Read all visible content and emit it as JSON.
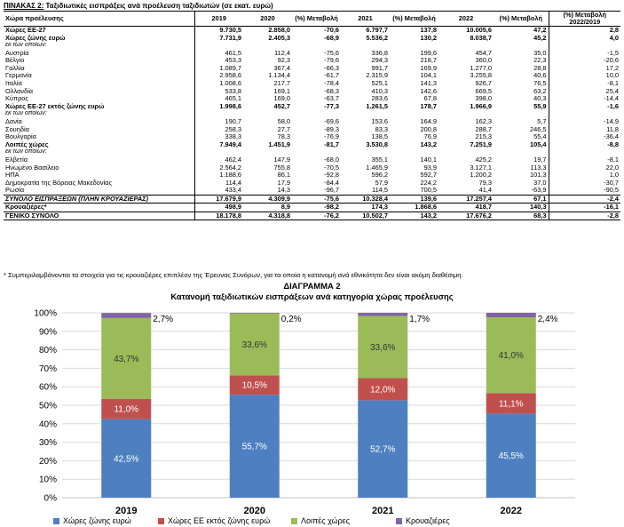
{
  "table": {
    "title_prefix": "ΠΙΝΑΚΑΣ 2:",
    "title_rest": "Ταξιδιωτικές εισπράξεις ανά προέλευση ταξιδιωτών (σε εκατ. ευρώ)",
    "headers": [
      "Χώρα προέλευσης",
      "2019",
      "2020",
      "(%) Μεταβολή",
      "2021",
      "(%) Μεταβολή",
      "2022",
      "(%) Μεταβολή",
      "(%) Μεταβολή 2022/2019"
    ],
    "rows": [
      {
        "label": "Χώρες ΕΕ-27",
        "cells": [
          "9.730,5",
          "2.858,0",
          "-70,6",
          "6.797,7",
          "137,8",
          "10.005,6",
          "47,2",
          "2,8"
        ],
        "style": "bold"
      },
      {
        "label": "Χώρες ζώνης ευρώ",
        "cells": [
          "7.731,9",
          "2.405,3",
          "-68,9",
          "5.536,2",
          "130,2",
          "8.038,7",
          "45,2",
          "4,0"
        ],
        "style": "bold"
      },
      {
        "label": "εκ των οποίων:",
        "cells": [
          "",
          "",
          "",
          "",
          "",
          "",
          "",
          ""
        ],
        "style": "sub"
      },
      {
        "label": "Αυστρία",
        "cells": [
          "461,5",
          "112,4",
          "-75,6",
          "336,8",
          "199,6",
          "454,7",
          "35,0",
          "-1,5"
        ],
        "style": ""
      },
      {
        "label": "Βέλγιο",
        "cells": [
          "453,3",
          "92,3",
          "-79,6",
          "294,3",
          "218,7",
          "360,0",
          "22,3",
          "-20,6"
        ],
        "style": ""
      },
      {
        "label": "Γαλλία",
        "cells": [
          "1.089,7",
          "367,4",
          "-66,3",
          "991,7",
          "169,9",
          "1.277,0",
          "28,8",
          "17,2"
        ],
        "style": ""
      },
      {
        "label": "Γερμανία",
        "cells": [
          "2.958,6",
          "1.134,4",
          "-61,7",
          "2.315,9",
          "104,1",
          "3.255,8",
          "40,6",
          "10,0"
        ],
        "style": ""
      },
      {
        "label": "Ιταλία",
        "cells": [
          "1.008,6",
          "217,7",
          "-78,4",
          "525,1",
          "141,3",
          "926,7",
          "76,5",
          "-8,1"
        ],
        "style": ""
      },
      {
        "label": "Ολλανδία",
        "cells": [
          "533,8",
          "169,1",
          "-68,3",
          "410,3",
          "142,6",
          "669,5",
          "63,2",
          "25,4"
        ],
        "style": ""
      },
      {
        "label": "Κύπρος",
        "cells": [
          "465,1",
          "169,0",
          "-63,7",
          "283,6",
          "67,8",
          "398,0",
          "40,3",
          "-14,4"
        ],
        "style": ""
      },
      {
        "label": "Χώρες ΕΕ-27 εκτός ζώνης ευρώ",
        "cells": [
          "1.998,6",
          "452,7",
          "-77,3",
          "1.261,5",
          "178,7",
          "1.966,9",
          "55,9",
          "-1,6"
        ],
        "style": "bold"
      },
      {
        "label": "εκ των οποίων:",
        "cells": [
          "",
          "",
          "",
          "",
          "",
          "",
          "",
          ""
        ],
        "style": "sub"
      },
      {
        "label": "Δανία",
        "cells": [
          "190,7",
          "58,0",
          "-69,6",
          "153,6",
          "164,9",
          "162,3",
          "5,7",
          "-14,9"
        ],
        "style": ""
      },
      {
        "label": "Σουηδία",
        "cells": [
          "258,3",
          "27,7",
          "-89,3",
          "83,3",
          "200,8",
          "288,7",
          "246,5",
          "11,8"
        ],
        "style": ""
      },
      {
        "label": "Βουλγαρία",
        "cells": [
          "338,3",
          "78,3",
          "-76,9",
          "138,5",
          "76,9",
          "215,3",
          "55,4",
          "-36,4"
        ],
        "style": ""
      },
      {
        "label": "Λοιπές χώρες",
        "cells": [
          "7.949,4",
          "1.451,9",
          "-81,7",
          "3.530,8",
          "143,2",
          "7.251,9",
          "105,4",
          "-8,8"
        ],
        "style": "bold"
      },
      {
        "label": "εκ των οποίων:",
        "cells": [
          "",
          "",
          "",
          "",
          "",
          "",
          "",
          ""
        ],
        "style": "sub"
      },
      {
        "label": "Ελβετία",
        "cells": [
          "462,4",
          "147,9",
          "-68,0",
          "355,1",
          "140,1",
          "425,2",
          "19,7",
          "-8,1"
        ],
        "style": ""
      },
      {
        "label": "Ηνωμένο Βασίλειο",
        "cells": [
          "2.564,2",
          "755,8",
          "-70,5",
          "1.465,9",
          "93,9",
          "3.127,1",
          "113,3",
          "22,0"
        ],
        "style": ""
      },
      {
        "label": "ΗΠΑ",
        "cells": [
          "1.188,6",
          "86,1",
          "-92,8",
          "596,2",
          "592,7",
          "1.200,2",
          "101,3",
          "1,0"
        ],
        "style": ""
      },
      {
        "label": "Δημοκρατία της Βόρειας Μακεδονίας",
        "cells": [
          "114,4",
          "17,9",
          "-84,4",
          "57,9",
          "224,2",
          "79,3",
          "37,0",
          "-30,7"
        ],
        "style": ""
      },
      {
        "label": "Ρωσία",
        "cells": [
          "433,4",
          "14,3",
          "-96,7",
          "114,5",
          "700,5",
          "41,4",
          "-63,9",
          "-90,5"
        ],
        "style": ""
      },
      {
        "label": "ΣΥΝΟΛΟ ΕΙΣΠΡΑΞΕΩΝ (ΠΛΗΝ ΚΡΟΥΑΖΙΕΡΑΣ)",
        "cells": [
          "17.679,9",
          "4.309,9",
          "-75,6",
          "10.328,4",
          "139,6",
          "17.257,4",
          "67,1",
          "-2,4"
        ],
        "style": "bold-italic line-top"
      },
      {
        "label": "Κρουαζιέρες*",
        "cells": [
          "498,9",
          "8,9",
          "-98,2",
          "174,3",
          "1.868,6",
          "418,7",
          "140,3",
          "-16,1"
        ],
        "style": "bold line-top"
      },
      {
        "label": "ΓΕΝΙΚΟ ΣΥΝΟΛΟ",
        "cells": [
          "18.178,8",
          "4.318,8",
          "-76,2",
          "10.502,7",
          "143,2",
          "17.676,2",
          "68,3",
          "-2,8"
        ],
        "style": "bold line-top line-bot"
      }
    ]
  },
  "footnote": "* Συμπεριλαμβάνονται τα στοιχεία για τις κρουαζιέρες επιπλέον της Έρευνας Συνόρων, για τα οποία η κατανομή ανά εθνικότητα δεν είναι ακόμη διαθέσιμη.",
  "diagram": {
    "label": "ΔΙΑΓΡΑΜΜΑ 2",
    "title": "Κατανομή ταξιδιωτικών εισπράξεων ανά κατηγορία χώρας προέλευσης"
  },
  "chart_data": {
    "type": "bar",
    "stacked": true,
    "percent": true,
    "categories": [
      "2019",
      "2020",
      "2021",
      "2022"
    ],
    "series": [
      {
        "name": "Χώρες ζώνης ευρώ",
        "color": "#4e7fc0",
        "values": [
          42.5,
          55.7,
          52.7,
          45.5
        ],
        "labels": [
          "42,5%",
          "55,7%",
          "52,7%",
          "45,5%"
        ]
      },
      {
        "name": "Χώρες ΕΕ εκτός ζώνης ευρώ",
        "color": "#c0504d",
        "values": [
          11.0,
          10.5,
          12.0,
          11.1
        ],
        "labels": [
          "11,0%",
          "10,5%",
          "12,0%",
          "11,1%"
        ]
      },
      {
        "name": "Λοιπές χώρες",
        "color": "#9bbb59",
        "values": [
          43.7,
          33.6,
          33.6,
          41.0
        ],
        "labels": [
          "43,7%",
          "33,6%",
          "33,6%",
          "41,0%"
        ]
      },
      {
        "name": "Κρουαζιέρες",
        "color": "#8064a2",
        "values": [
          2.7,
          0.2,
          1.7,
          2.4
        ],
        "labels": [
          "2,7%",
          "0,2%",
          "1,7%",
          "2,4%"
        ]
      }
    ],
    "yticks": [
      "0%",
      "10%",
      "20%",
      "30%",
      "40%",
      "50%",
      "60%",
      "70%",
      "80%",
      "90%",
      "100%"
    ],
    "ylim": [
      0,
      100
    ],
    "grid": true,
    "legend": "bottom"
  }
}
